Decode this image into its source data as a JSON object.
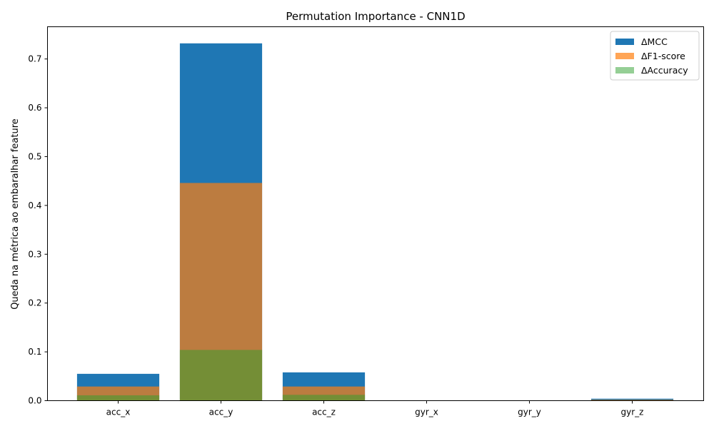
{
  "chart_data": {
    "type": "bar",
    "title": "Permutation Importance - CNN1D",
    "xlabel": "",
    "ylabel": "Queda na métrica ao embaralhar feature",
    "categories": [
      "acc_x",
      "acc_y",
      "acc_z",
      "gyr_x",
      "gyr_y",
      "gyr_z"
    ],
    "series": [
      {
        "name": "ΔMCC",
        "values": [
          0.055,
          0.732,
          0.058,
          0.0,
          0.0,
          0.004
        ],
        "color": "#1f77b4",
        "opacity": 1.0
      },
      {
        "name": "ΔF1-score",
        "values": [
          0.029,
          0.446,
          0.029,
          0.0,
          0.0,
          0.002
        ],
        "color": "#ff7f0e",
        "opacity": 0.7
      },
      {
        "name": "ΔAccuracy",
        "values": [
          0.011,
          0.104,
          0.012,
          0.0,
          0.0,
          0.001
        ],
        "color": "#2ca02c",
        "opacity": 0.5
      }
    ],
    "ylim": [
      0,
      0.766
    ],
    "yticks": [
      0.0,
      0.1,
      0.2,
      0.3,
      0.4,
      0.5,
      0.6,
      0.7
    ],
    "ytick_labels": [
      "0.0",
      "0.1",
      "0.2",
      "0.3",
      "0.4",
      "0.5",
      "0.6",
      "0.7"
    ],
    "grid": false,
    "legend_position": "top-right",
    "overlaid_bars": true
  }
}
